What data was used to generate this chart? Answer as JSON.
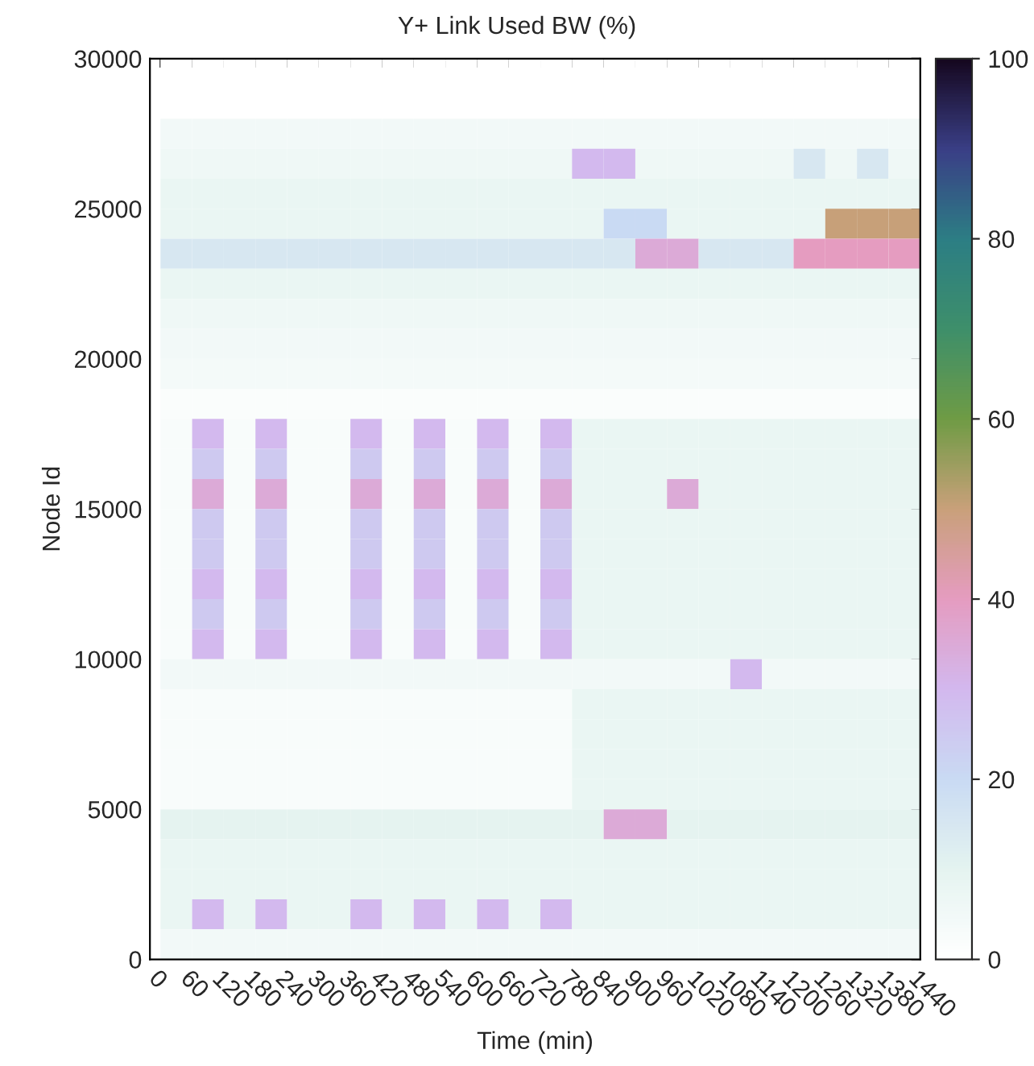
{
  "chart_data": {
    "type": "heatmap",
    "title": "Y+ Link Used BW (%)",
    "xlabel": "Time (min)",
    "ylabel": "Node Id",
    "x": [
      30,
      90,
      150,
      210,
      270,
      330,
      390,
      450,
      510,
      570,
      630,
      690,
      750,
      810,
      870,
      930,
      990,
      1050,
      1110,
      1170,
      1230,
      1290,
      1350,
      1410
    ],
    "y": [
      29500,
      28500,
      27500,
      26500,
      25500,
      24500,
      23500,
      22500,
      21500,
      20500,
      19500,
      18500,
      17500,
      16500,
      15500,
      14500,
      13500,
      12500,
      11500,
      10500,
      9500,
      8500,
      7500,
      6500,
      5500,
      4500,
      3500,
      2500,
      1500,
      500
    ],
    "xlim": [
      -20,
      1440
    ],
    "ylim": [
      0,
      30000
    ],
    "xticks": [
      0,
      60,
      120,
      180,
      240,
      300,
      360,
      420,
      480,
      540,
      600,
      660,
      720,
      780,
      840,
      900,
      960,
      1020,
      1080,
      1140,
      1200,
      1260,
      1320,
      1380,
      1440
    ],
    "yticks": [
      0,
      5000,
      10000,
      15000,
      20000,
      25000,
      30000
    ],
    "clim": [
      0,
      100
    ],
    "cticks": [
      0,
      20,
      40,
      60,
      80,
      100
    ],
    "cells": [
      [
        0,
        0,
        0,
        0,
        0,
        0,
        0,
        0,
        0,
        0,
        0,
        0,
        0,
        0,
        0,
        0,
        0,
        0,
        0,
        0,
        0,
        0,
        0,
        0
      ],
      [
        0,
        0,
        0,
        0,
        0,
        0,
        0,
        0,
        0,
        0,
        0,
        0,
        0,
        0,
        0,
        0,
        0,
        0,
        0,
        0,
        0,
        0,
        0,
        0
      ],
      [
        5,
        5,
        5,
        5,
        5,
        5,
        5,
        5,
        5,
        5,
        5,
        5,
        5,
        5,
        5,
        5,
        5,
        5,
        5,
        5,
        5,
        5,
        5,
        5
      ],
      [
        6,
        6,
        6,
        6,
        6,
        6,
        6,
        6,
        6,
        6,
        6,
        6,
        6,
        30,
        30,
        6,
        6,
        6,
        6,
        6,
        15,
        6,
        15,
        6
      ],
      [
        8,
        8,
        8,
        8,
        8,
        8,
        8,
        8,
        8,
        8,
        8,
        8,
        8,
        8,
        8,
        8,
        8,
        8,
        8,
        8,
        8,
        8,
        8,
        8
      ],
      [
        8,
        8,
        8,
        8,
        8,
        8,
        8,
        8,
        8,
        8,
        8,
        8,
        8,
        8,
        20,
        20,
        8,
        8,
        8,
        8,
        8,
        50,
        50,
        50
      ],
      [
        15,
        15,
        15,
        15,
        15,
        15,
        15,
        15,
        15,
        15,
        15,
        15,
        15,
        15,
        15,
        35,
        35,
        15,
        15,
        15,
        40,
        40,
        40,
        40
      ],
      [
        8,
        8,
        8,
        8,
        8,
        8,
        8,
        8,
        8,
        8,
        8,
        8,
        8,
        8,
        8,
        8,
        8,
        8,
        8,
        8,
        8,
        8,
        8,
        8
      ],
      [
        6,
        6,
        6,
        6,
        6,
        6,
        6,
        6,
        6,
        6,
        6,
        6,
        6,
        6,
        6,
        6,
        6,
        6,
        6,
        6,
        6,
        6,
        6,
        6
      ],
      [
        5,
        5,
        5,
        5,
        5,
        5,
        5,
        5,
        5,
        5,
        5,
        5,
        5,
        5,
        5,
        5,
        5,
        5,
        5,
        5,
        5,
        5,
        5,
        5
      ],
      [
        4,
        4,
        4,
        4,
        4,
        4,
        4,
        4,
        4,
        4,
        4,
        4,
        4,
        4,
        4,
        4,
        4,
        4,
        4,
        4,
        4,
        4,
        4,
        4
      ],
      [
        2,
        2,
        2,
        2,
        2,
        2,
        2,
        2,
        2,
        2,
        2,
        2,
        2,
        2,
        2,
        2,
        2,
        2,
        2,
        2,
        2,
        2,
        2,
        2
      ],
      [
        3,
        30,
        3,
        30,
        3,
        3,
        30,
        3,
        30,
        3,
        30,
        3,
        30,
        8,
        8,
        8,
        8,
        8,
        8,
        8,
        8,
        8,
        8,
        8
      ],
      [
        3,
        25,
        3,
        25,
        3,
        3,
        25,
        3,
        25,
        3,
        25,
        3,
        25,
        8,
        8,
        8,
        8,
        8,
        8,
        8,
        8,
        8,
        8,
        8
      ],
      [
        3,
        35,
        3,
        35,
        3,
        3,
        35,
        3,
        35,
        3,
        35,
        3,
        35,
        8,
        8,
        8,
        35,
        8,
        8,
        8,
        8,
        8,
        8,
        8
      ],
      [
        3,
        25,
        3,
        25,
        3,
        3,
        25,
        3,
        25,
        3,
        25,
        3,
        25,
        8,
        8,
        8,
        8,
        8,
        8,
        8,
        8,
        8,
        8,
        8
      ],
      [
        3,
        25,
        3,
        25,
        3,
        3,
        25,
        3,
        25,
        3,
        25,
        3,
        25,
        8,
        8,
        8,
        8,
        8,
        8,
        8,
        8,
        8,
        8,
        8
      ],
      [
        3,
        30,
        3,
        30,
        3,
        3,
        30,
        3,
        30,
        3,
        30,
        3,
        30,
        8,
        8,
        8,
        8,
        8,
        8,
        8,
        8,
        8,
        8,
        8
      ],
      [
        3,
        25,
        3,
        25,
        3,
        3,
        25,
        3,
        25,
        3,
        25,
        3,
        25,
        8,
        8,
        8,
        8,
        8,
        8,
        8,
        8,
        8,
        8,
        8
      ],
      [
        3,
        30,
        3,
        30,
        3,
        3,
        30,
        3,
        30,
        3,
        30,
        3,
        30,
        8,
        8,
        8,
        8,
        8,
        8,
        8,
        8,
        8,
        8,
        8
      ],
      [
        5,
        5,
        5,
        5,
        5,
        5,
        5,
        5,
        5,
        5,
        5,
        5,
        5,
        5,
        5,
        5,
        5,
        5,
        30,
        5,
        5,
        5,
        5,
        5
      ],
      [
        3,
        3,
        3,
        3,
        3,
        3,
        3,
        3,
        3,
        3,
        3,
        3,
        3,
        8,
        8,
        8,
        8,
        8,
        8,
        8,
        8,
        8,
        8,
        8
      ],
      [
        3,
        3,
        3,
        3,
        3,
        3,
        3,
        3,
        3,
        3,
        3,
        3,
        3,
        8,
        8,
        8,
        8,
        8,
        8,
        8,
        8,
        8,
        8,
        8
      ],
      [
        3,
        3,
        3,
        3,
        3,
        3,
        3,
        3,
        3,
        3,
        3,
        3,
        3,
        8,
        8,
        8,
        8,
        8,
        8,
        8,
        8,
        8,
        8,
        8
      ],
      [
        3,
        3,
        3,
        3,
        3,
        3,
        3,
        3,
        3,
        3,
        3,
        3,
        3,
        8,
        8,
        8,
        8,
        8,
        8,
        8,
        8,
        8,
        8,
        8
      ],
      [
        10,
        10,
        10,
        10,
        10,
        10,
        10,
        10,
        10,
        10,
        10,
        10,
        10,
        10,
        35,
        35,
        10,
        10,
        10,
        10,
        10,
        10,
        10,
        10
      ],
      [
        8,
        8,
        8,
        8,
        8,
        8,
        8,
        8,
        8,
        8,
        8,
        8,
        8,
        8,
        8,
        8,
        8,
        8,
        8,
        8,
        8,
        8,
        8,
        8
      ],
      [
        8,
        8,
        8,
        8,
        8,
        8,
        8,
        8,
        8,
        8,
        8,
        8,
        8,
        8,
        8,
        8,
        8,
        8,
        8,
        8,
        8,
        8,
        8,
        8
      ],
      [
        8,
        30,
        8,
        30,
        8,
        8,
        30,
        8,
        30,
        8,
        30,
        8,
        30,
        8,
        8,
        8,
        8,
        8,
        8,
        8,
        8,
        8,
        8,
        8
      ],
      [
        5,
        5,
        5,
        5,
        5,
        5,
        5,
        5,
        5,
        5,
        5,
        5,
        5,
        5,
        5,
        5,
        5,
        5,
        5,
        5,
        5,
        5,
        5,
        5
      ]
    ]
  }
}
